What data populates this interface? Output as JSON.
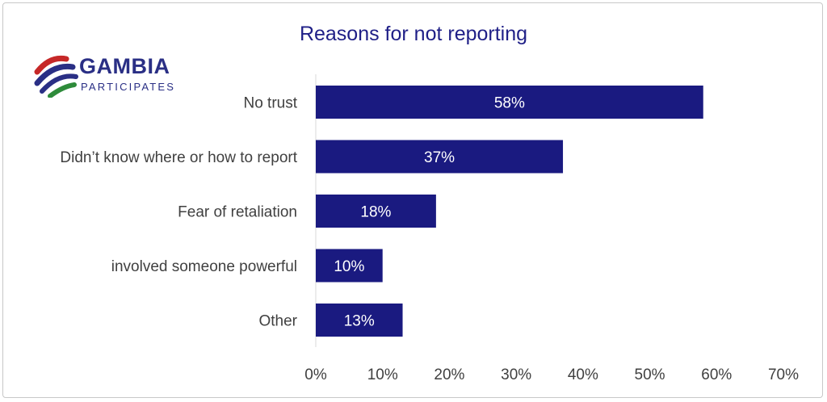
{
  "logo": {
    "name": "GAMBIA",
    "subtitle": "PARTICIPATES"
  },
  "chart_data": {
    "type": "bar",
    "orientation": "horizontal",
    "title": "Reasons for not reporting",
    "categories": [
      "No trust",
      "Didn’t know where or how to report",
      "Fear of retaliation",
      "involved someone powerful",
      "Other"
    ],
    "values": [
      58,
      37,
      18,
      10,
      13
    ],
    "data_labels": [
      "58%",
      "37%",
      "18%",
      "10%",
      "13%"
    ],
    "xlim": [
      0,
      70
    ],
    "xticks": [
      "0%",
      "10%",
      "20%",
      "30%",
      "40%",
      "50%",
      "60%",
      "70%"
    ],
    "grid": false,
    "bar_color": "#1a1a80"
  }
}
